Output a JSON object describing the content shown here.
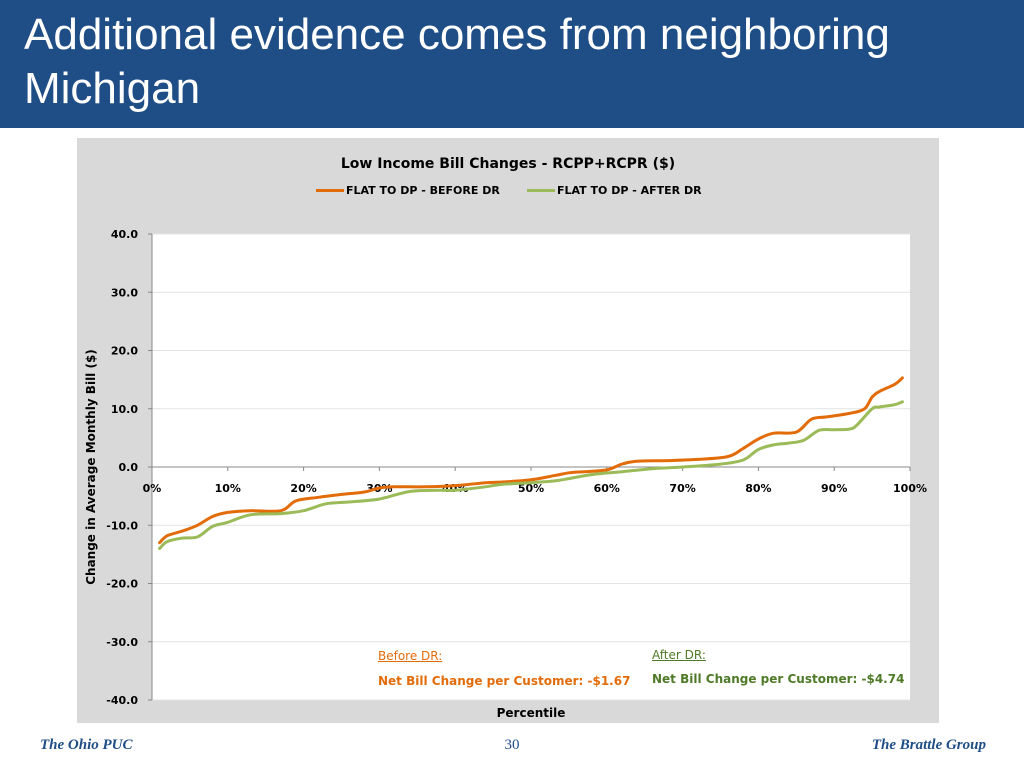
{
  "slide": {
    "title": "Additional evidence comes from neighboring Michigan",
    "footer_left": "The Ohio PUC",
    "page_number": "30",
    "footer_right": "The Brattle Group"
  },
  "colors": {
    "header_bg": "#1f4e86",
    "before_dr": "#e36c0a",
    "after_dr": "#9bbb59",
    "after_dr_text": "#4f7b28"
  },
  "annotations": {
    "before_label": "Before DR:",
    "before_value": "Net Bill Change per Customer: -$1.67",
    "after_label": "After DR:",
    "after_value": "Net Bill Change per Customer: -$4.74"
  },
  "chart_data": {
    "type": "line",
    "title": "Low Income Bill Changes  - RCPP+RCPR ($)",
    "xlabel": "Percentile",
    "ylabel": "Change in Average Monthly Bill ($)",
    "xlim": [
      0,
      100
    ],
    "ylim": [
      -40,
      40
    ],
    "x_ticks": [
      "0%",
      "10%",
      "20%",
      "30%",
      "40%",
      "50%",
      "60%",
      "70%",
      "80%",
      "90%",
      "100%"
    ],
    "y_ticks": [
      "40.0",
      "30.0",
      "20.0",
      "10.0",
      "0.0",
      "-10.0",
      "-20.0",
      "-30.0",
      "-40.0"
    ],
    "grid": true,
    "legend": "top",
    "series": [
      {
        "name": "FLAT TO DP - BEFORE DR",
        "color": "#e36c0a",
        "x": [
          1,
          2,
          4,
          6,
          8,
          10,
          13,
          17,
          19,
          22,
          25,
          28,
          30,
          32,
          36,
          40,
          44,
          46,
          50,
          53,
          55,
          57,
          60,
          62,
          64,
          68,
          72,
          76,
          78,
          80,
          82,
          85,
          87,
          89,
          92,
          94,
          95,
          96,
          98,
          99
        ],
        "y": [
          -13,
          -11.8,
          -11,
          -10,
          -8.5,
          -7.8,
          -7.5,
          -7.5,
          -5.8,
          -5.2,
          -4.7,
          -4.3,
          -3.6,
          -3.4,
          -3.4,
          -3.2,
          -2.7,
          -2.6,
          -2.2,
          -1.5,
          -1.0,
          -0.8,
          -0.5,
          0.5,
          1.0,
          1.1,
          1.3,
          1.8,
          3.2,
          4.8,
          5.8,
          6.0,
          8.2,
          8.6,
          9.2,
          10,
          12,
          13,
          14.2,
          15.3
        ]
      },
      {
        "name": "FLAT TO DP - AFTER DR",
        "color": "#9bbb59",
        "x": [
          1,
          2,
          4,
          6,
          8,
          10,
          13,
          17,
          20,
          23,
          26,
          30,
          34,
          38,
          40,
          44,
          46,
          50,
          53,
          55,
          58,
          62,
          66,
          70,
          75,
          78,
          80,
          82,
          84,
          86,
          88,
          90,
          92,
          93,
          95,
          96,
          98,
          99
        ],
        "y": [
          -14,
          -12.8,
          -12.2,
          -12.0,
          -10.2,
          -9.5,
          -8.2,
          -8.0,
          -7.5,
          -6.3,
          -6.0,
          -5.5,
          -4.2,
          -4.0,
          -4.0,
          -3.4,
          -3.0,
          -2.7,
          -2.4,
          -2.0,
          -1.3,
          -0.8,
          -0.3,
          0.0,
          0.5,
          1.2,
          3.0,
          3.8,
          4.1,
          4.6,
          6.3,
          6.4,
          6.5,
          7.2,
          10.0,
          10.3,
          10.7,
          11.2
        ]
      }
    ]
  }
}
